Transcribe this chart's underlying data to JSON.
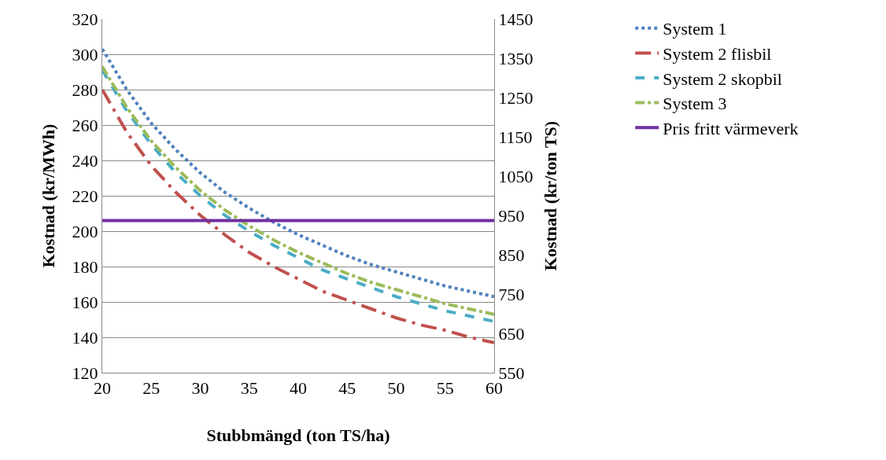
{
  "chart_data": {
    "type": "line",
    "xlabel": "Stubbmängd (ton TS/ha)",
    "ylabel": "Kostnad (kr/MWh)",
    "y2label": "Kostnad (kr/ton TS)",
    "x": [
      20,
      22.5,
      25,
      27.5,
      30,
      32.5,
      35,
      37.5,
      40,
      42.5,
      45,
      47.5,
      50,
      52.5,
      55,
      57.5,
      60
    ],
    "series": [
      {
        "name": "System 1",
        "color": "#4f81bd",
        "line_style": "dotted",
        "values": [
          303,
          280,
          261,
          246,
          233,
          222,
          213,
          205,
          198,
          192,
          186,
          181,
          177,
          173,
          169,
          166,
          163
        ]
      },
      {
        "name": "System 2 flisbil",
        "color": "#c0504d",
        "line_style": "longdashdot",
        "values": [
          280,
          256,
          237,
          222,
          209,
          198,
          188,
          180,
          173,
          166,
          161,
          156,
          151,
          147,
          144,
          140,
          137
        ]
      },
      {
        "name": "System 2 skopbil",
        "color": "#4bacc6",
        "line_style": "dashed",
        "values": [
          291,
          268,
          249,
          233,
          220,
          209,
          200,
          192,
          185,
          178,
          173,
          168,
          163,
          159,
          155,
          152,
          149
        ]
      },
      {
        "name": "System 3",
        "color": "#9bbb59",
        "line_style": "dashdot",
        "values": [
          293,
          270,
          251,
          236,
          223,
          212,
          203,
          195,
          188,
          182,
          176,
          171,
          167,
          163,
          159,
          156,
          153
        ]
      },
      {
        "name": "Pris fritt värmeverk",
        "color": "#7030a0",
        "line_style": "solid",
        "values": [
          206,
          206,
          206,
          206,
          206,
          206,
          206,
          206,
          206,
          206,
          206,
          206,
          206,
          206,
          206,
          206,
          206
        ]
      }
    ],
    "xlim": [
      20,
      60
    ],
    "xticks": [
      20,
      25,
      30,
      35,
      40,
      45,
      50,
      55,
      60
    ],
    "ylim": [
      120,
      320
    ],
    "yticks": [
      120,
      140,
      160,
      180,
      200,
      220,
      240,
      260,
      280,
      300,
      320
    ],
    "y2lim": [
      550,
      1450
    ],
    "y2ticks": [
      550,
      650,
      750,
      850,
      950,
      1050,
      1150,
      1250,
      1350,
      1450
    ],
    "grid": "y",
    "legend": "right",
    "marker": "none"
  }
}
